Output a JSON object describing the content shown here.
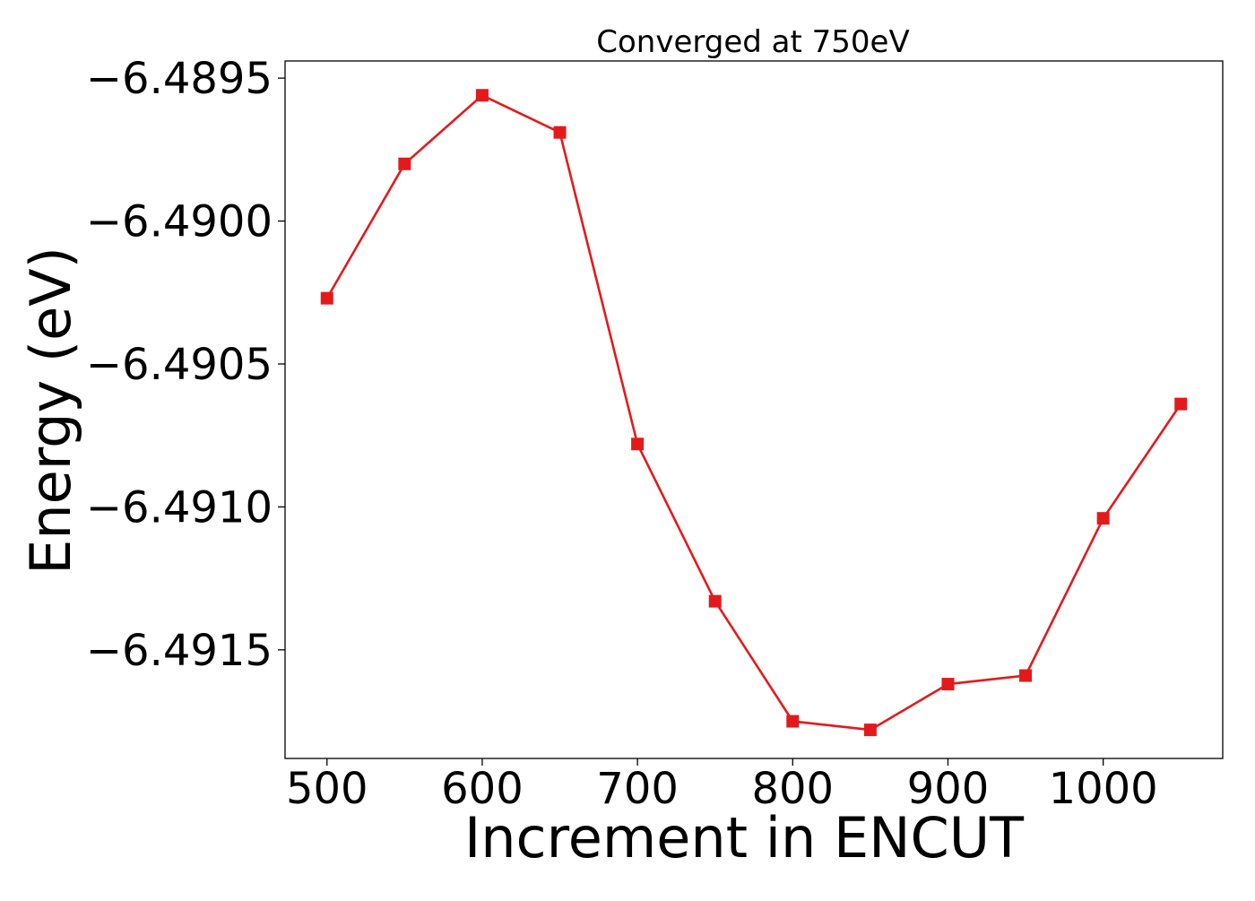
{
  "chart_data": {
    "type": "line",
    "title": "Converged at 750eV",
    "xlabel": "Increment in ENCUT",
    "ylabel": "Energy (eV)",
    "x": [
      500,
      550,
      600,
      650,
      700,
      750,
      800,
      850,
      900,
      950,
      1000,
      1050
    ],
    "series": [
      {
        "values": [
          -6.49027,
          -6.4898,
          -6.48956,
          -6.48969,
          -6.49078,
          -6.49133,
          -6.49175,
          -6.49178,
          -6.49162,
          -6.49159,
          -6.49104,
          -6.49064
        ],
        "color": "#e31a1c",
        "marker": "square"
      }
    ],
    "xticks": [
      500,
      600,
      700,
      800,
      900,
      1000
    ],
    "xtick_labels": [
      "500",
      "600",
      "700",
      "800",
      "900",
      "1000"
    ],
    "yticks": [
      -6.4895,
      -6.49,
      -6.4905,
      -6.491,
      -6.4915
    ],
    "ytick_labels": [
      "−6.4895",
      "−6.4900",
      "−6.4905",
      "−6.4910",
      "−6.4915"
    ],
    "xlim": [
      473,
      1077
    ],
    "ylim": [
      -6.49188,
      -6.48944
    ],
    "grid": false,
    "legend": "none"
  }
}
